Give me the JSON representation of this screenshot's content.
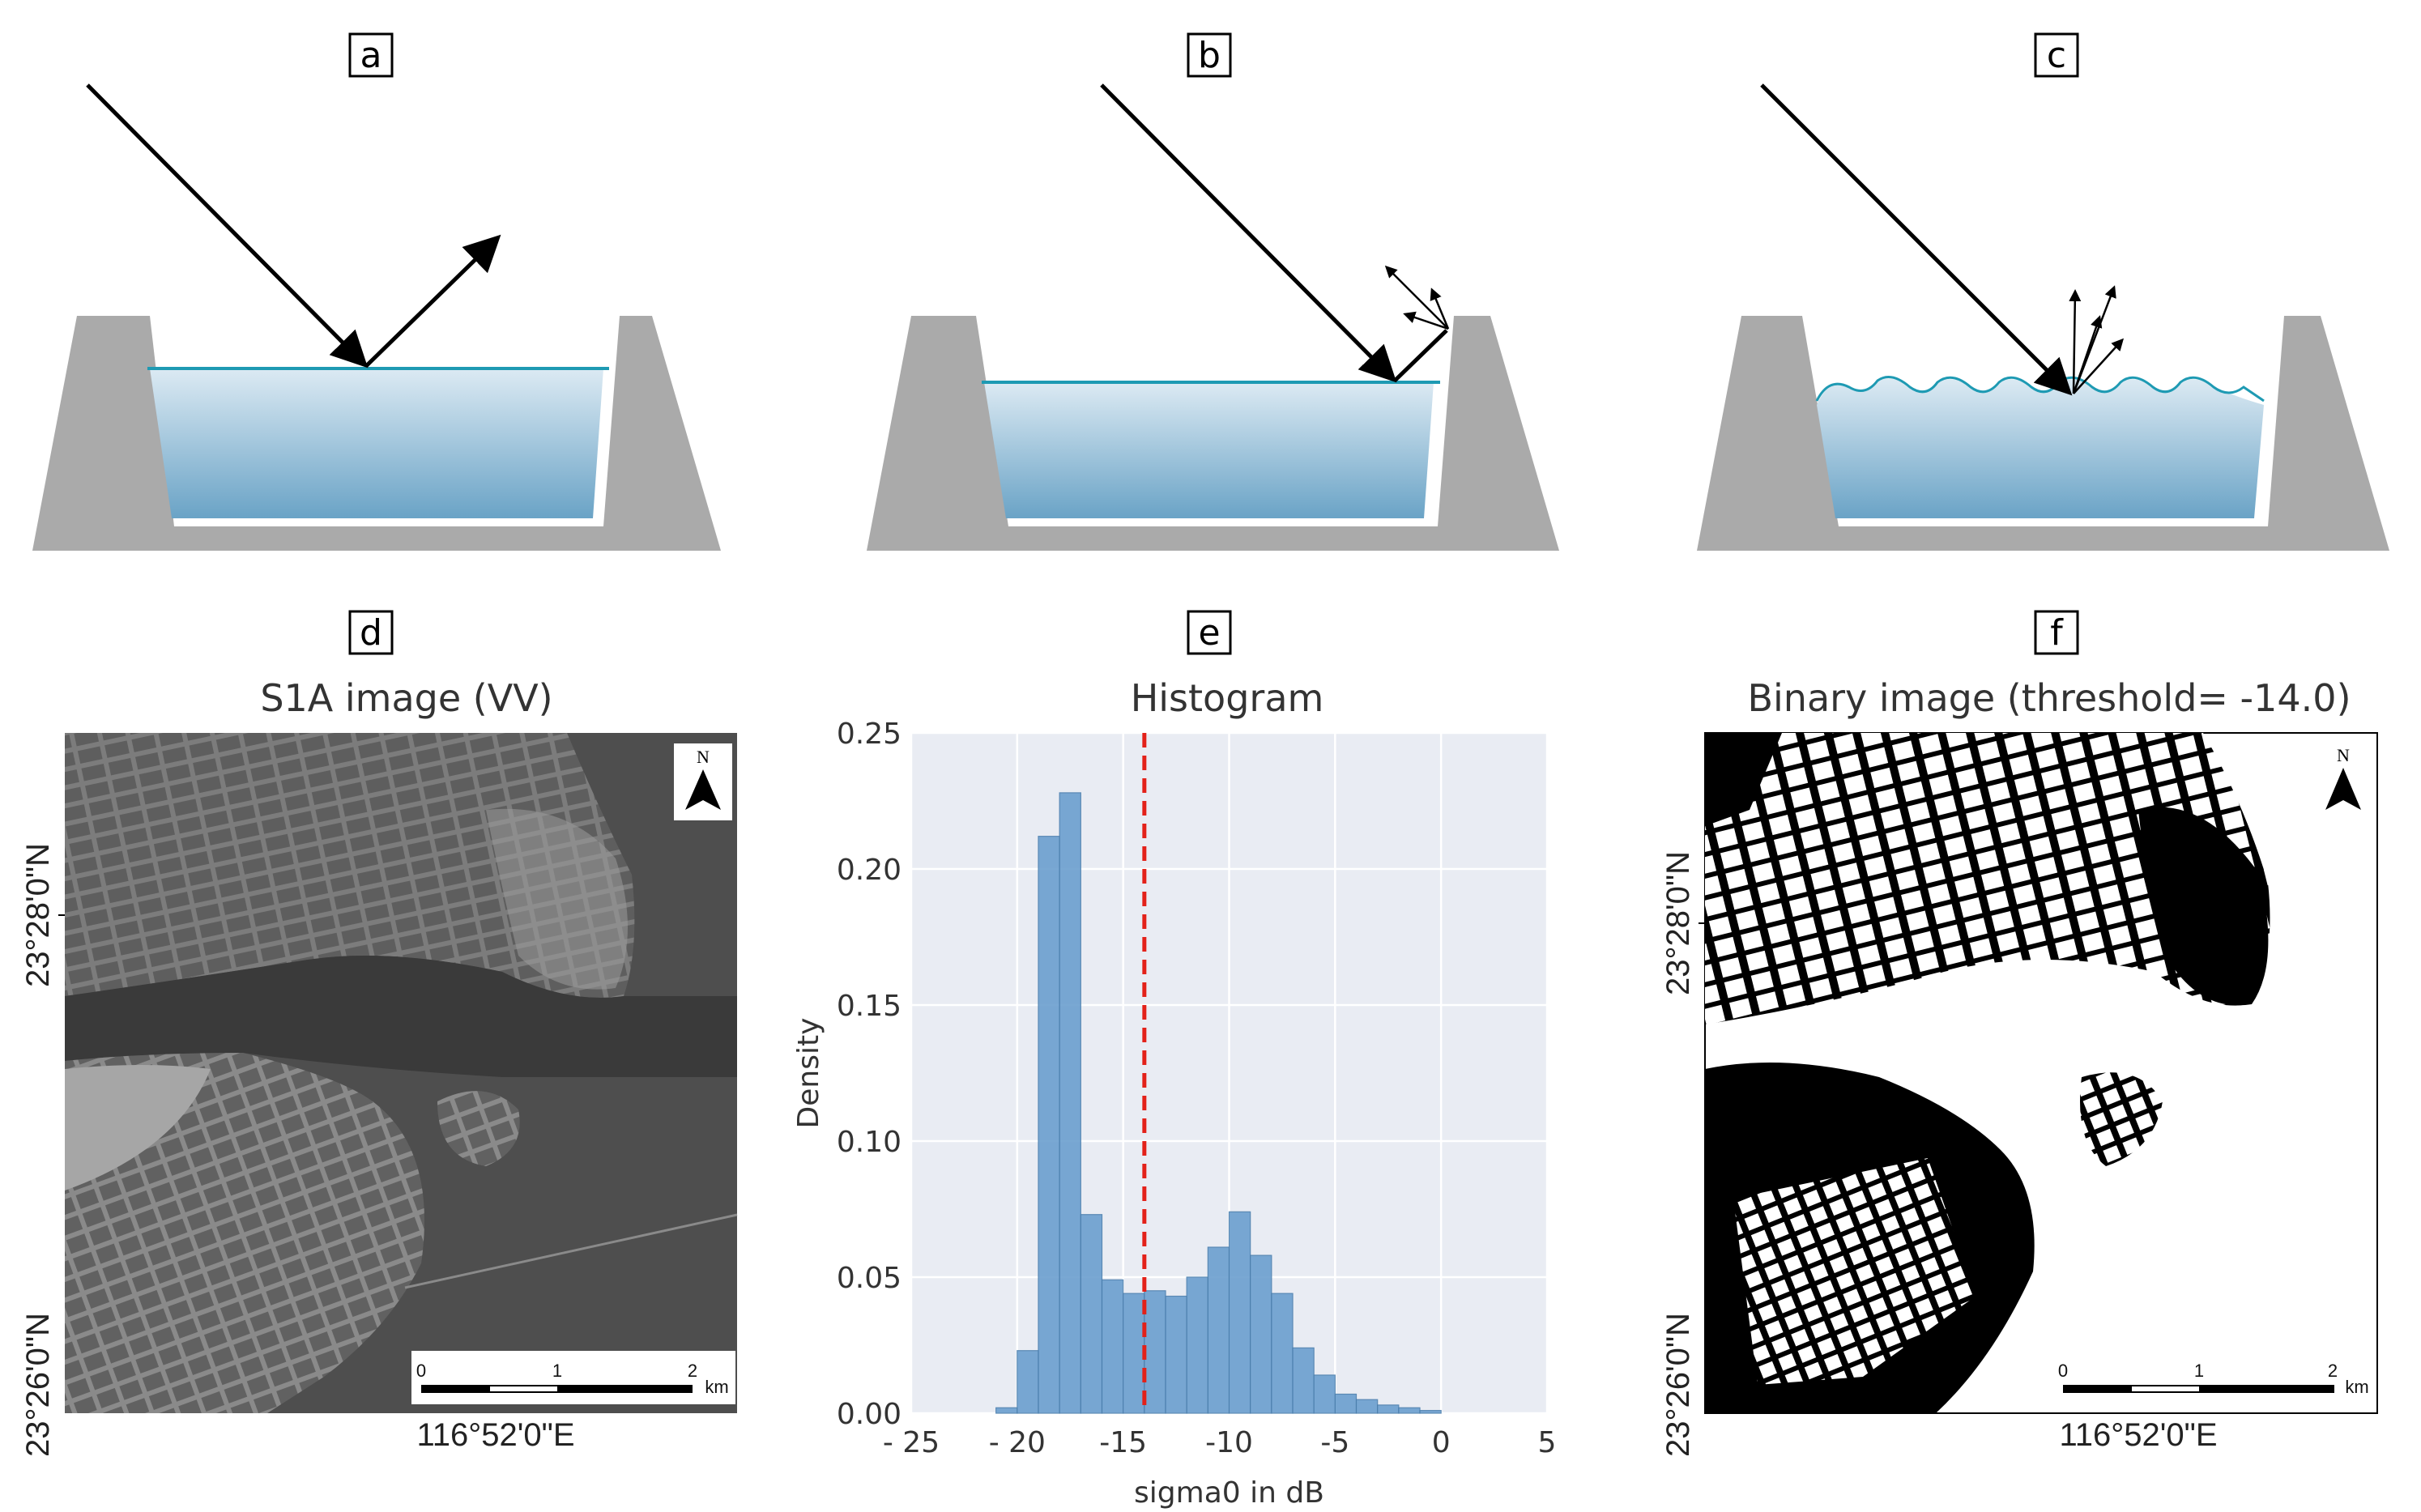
{
  "panels": {
    "a": {
      "label": "a"
    },
    "b": {
      "label": "b"
    },
    "c": {
      "label": "c"
    },
    "d": {
      "label": "d",
      "title": "S1A image (VV)"
    },
    "e": {
      "label": "e",
      "title": "Histogram"
    },
    "f": {
      "label": "f",
      "title": "Binary image (threshold= -14.0)"
    }
  },
  "map": {
    "lat_top": "23°28'0\"N",
    "lat_bottom": "23°26'0\"N",
    "lon": "116°52'0\"E",
    "north": "N",
    "scale_ticks": [
      "0",
      "1",
      "2"
    ],
    "scale_unit": "km"
  },
  "colors": {
    "water_top": "#dceaf3",
    "water_bottom": "#6aa3c6",
    "waterline": "#1e9ab3",
    "bank": "#aaaaaa",
    "bar_fill": "#6b9fcf",
    "plot_bg": "#e9ecf3",
    "threshold_line": "#e32119"
  },
  "chart_data": {
    "type": "bar",
    "title": "Histogram",
    "xlabel": "sigma0 in dB",
    "ylabel": "Density",
    "xlim": [
      -25,
      5
    ],
    "ylim": [
      0,
      0.25
    ],
    "x_ticks": [
      "- 25",
      "- 20",
      "-15",
      "-10",
      "-5",
      "0",
      "5"
    ],
    "y_ticks": [
      "0.00",
      "0.05",
      "0.10",
      "0.15",
      "0.20",
      "0.25"
    ],
    "bin_width": 1.0,
    "bins": [
      {
        "x": -21,
        "density": 0.002
      },
      {
        "x": -20,
        "density": 0.023
      },
      {
        "x": -19,
        "density": 0.212
      },
      {
        "x": -18,
        "density": 0.228
      },
      {
        "x": -17,
        "density": 0.073
      },
      {
        "x": -16,
        "density": 0.049
      },
      {
        "x": -15,
        "density": 0.044
      },
      {
        "x": -14,
        "density": 0.045
      },
      {
        "x": -13,
        "density": 0.043
      },
      {
        "x": -12,
        "density": 0.05
      },
      {
        "x": -11,
        "density": 0.061
      },
      {
        "x": -10,
        "density": 0.074
      },
      {
        "x": -9,
        "density": 0.058
      },
      {
        "x": -8,
        "density": 0.044
      },
      {
        "x": -7,
        "density": 0.024
      },
      {
        "x": -6,
        "density": 0.014
      },
      {
        "x": -5,
        "density": 0.007
      },
      {
        "x": -4,
        "density": 0.005
      },
      {
        "x": -3,
        "density": 0.003
      },
      {
        "x": -2,
        "density": 0.002
      },
      {
        "x": -1,
        "density": 0.001
      }
    ],
    "threshold": -14.0,
    "grid": true
  }
}
